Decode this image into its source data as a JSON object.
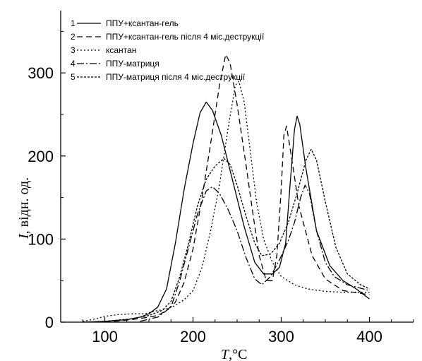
{
  "chart_data": {
    "type": "line",
    "title": "",
    "xlabel_symbol": "T",
    "xlabel_unit": ",°C",
    "ylabel_symbol": "I",
    "ylabel_unit": ", відн. од.",
    "xlim": [
      50,
      450
    ],
    "ylim": [
      0,
      375
    ],
    "xticks": [
      100,
      200,
      300,
      400
    ],
    "yticks": [
      0,
      100,
      200,
      300
    ],
    "grid": false,
    "legend_position": "top-left",
    "series": [
      {
        "id": "1",
        "name": "ППУ+ксантан-гель",
        "dash": "solid",
        "points": [
          [
            75,
            0
          ],
          [
            100,
            1
          ],
          [
            125,
            3
          ],
          [
            140,
            6
          ],
          [
            150,
            10
          ],
          [
            160,
            18
          ],
          [
            170,
            40
          ],
          [
            180,
            95
          ],
          [
            190,
            160
          ],
          [
            200,
            215
          ],
          [
            208,
            252
          ],
          [
            215,
            265
          ],
          [
            222,
            255
          ],
          [
            232,
            225
          ],
          [
            245,
            170
          ],
          [
            258,
            115
          ],
          [
            270,
            72
          ],
          [
            280,
            58
          ],
          [
            290,
            58
          ],
          [
            298,
            66
          ],
          [
            305,
            95
          ],
          [
            310,
            165
          ],
          [
            315,
            232
          ],
          [
            318,
            248
          ],
          [
            321,
            238
          ],
          [
            328,
            185
          ],
          [
            340,
            110
          ],
          [
            355,
            68
          ],
          [
            370,
            50
          ],
          [
            385,
            40
          ],
          [
            400,
            28
          ]
        ]
      },
      {
        "id": "2",
        "name": "ППУ+ксантан-гель після 4 міс.деструкції",
        "dash": "8,5",
        "points": [
          [
            100,
            0
          ],
          [
            130,
            3
          ],
          [
            150,
            6
          ],
          [
            160,
            8
          ],
          [
            170,
            14
          ],
          [
            180,
            24
          ],
          [
            190,
            48
          ],
          [
            200,
            88
          ],
          [
            210,
            148
          ],
          [
            220,
            215
          ],
          [
            230,
            285
          ],
          [
            237,
            322
          ],
          [
            242,
            312
          ],
          [
            250,
            262
          ],
          [
            260,
            190
          ],
          [
            268,
            130
          ],
          [
            275,
            80
          ],
          [
            283,
            50
          ],
          [
            290,
            50
          ],
          [
            295,
            80
          ],
          [
            300,
            160
          ],
          [
            303,
            225
          ],
          [
            306,
            236
          ],
          [
            310,
            210
          ],
          [
            320,
            140
          ],
          [
            335,
            80
          ],
          [
            350,
            52
          ],
          [
            370,
            38
          ],
          [
            400,
            33
          ]
        ]
      },
      {
        "id": "3",
        "name": "ксантан",
        "dash": "2,3",
        "points": [
          [
            75,
            1
          ],
          [
            90,
            4
          ],
          [
            100,
            7
          ],
          [
            115,
            9
          ],
          [
            130,
            10
          ],
          [
            145,
            10
          ],
          [
            160,
            14
          ],
          [
            170,
            16
          ],
          [
            180,
            20
          ],
          [
            190,
            27
          ],
          [
            200,
            38
          ],
          [
            210,
            65
          ],
          [
            220,
            110
          ],
          [
            230,
            165
          ],
          [
            240,
            235
          ],
          [
            248,
            285
          ],
          [
            252,
            290
          ],
          [
            258,
            265
          ],
          [
            265,
            205
          ],
          [
            272,
            145
          ],
          [
            280,
            100
          ],
          [
            290,
            72
          ],
          [
            300,
            55
          ],
          [
            315,
            45
          ],
          [
            330,
            40
          ],
          [
            350,
            37
          ],
          [
            370,
            36
          ],
          [
            400,
            36
          ]
        ]
      },
      {
        "id": "4",
        "name": "ППУ-матриця",
        "dash": "10,3,2,3",
        "points": [
          [
            140,
            1
          ],
          [
            160,
            6
          ],
          [
            175,
            18
          ],
          [
            185,
            50
          ],
          [
            195,
            90
          ],
          [
            205,
            130
          ],
          [
            215,
            158
          ],
          [
            222,
            163
          ],
          [
            230,
            155
          ],
          [
            240,
            135
          ],
          [
            250,
            110
          ],
          [
            260,
            78
          ],
          [
            270,
            52
          ],
          [
            278,
            45
          ],
          [
            288,
            55
          ],
          [
            298,
            75
          ],
          [
            308,
            98
          ],
          [
            315,
            120
          ],
          [
            322,
            150
          ],
          [
            327,
            165
          ],
          [
            332,
            155
          ],
          [
            340,
            110
          ],
          [
            350,
            72
          ],
          [
            360,
            55
          ],
          [
            375,
            45
          ],
          [
            400,
            38
          ]
        ]
      },
      {
        "id": "5",
        "name": "ППУ-матриця  після 4 міс.деструкції",
        "dash": "3,2",
        "points": [
          [
            100,
            1
          ],
          [
            130,
            4
          ],
          [
            150,
            8
          ],
          [
            165,
            14
          ],
          [
            175,
            25
          ],
          [
            185,
            55
          ],
          [
            195,
            95
          ],
          [
            205,
            140
          ],
          [
            215,
            172
          ],
          [
            225,
            188
          ],
          [
            235,
            197
          ],
          [
            242,
            190
          ],
          [
            250,
            165
          ],
          [
            260,
            128
          ],
          [
            270,
            95
          ],
          [
            278,
            80
          ],
          [
            288,
            82
          ],
          [
            298,
            95
          ],
          [
            308,
            120
          ],
          [
            318,
            155
          ],
          [
            328,
            195
          ],
          [
            334,
            208
          ],
          [
            340,
            195
          ],
          [
            350,
            145
          ],
          [
            362,
            90
          ],
          [
            375,
            58
          ],
          [
            390,
            45
          ],
          [
            400,
            40
          ]
        ]
      }
    ]
  }
}
